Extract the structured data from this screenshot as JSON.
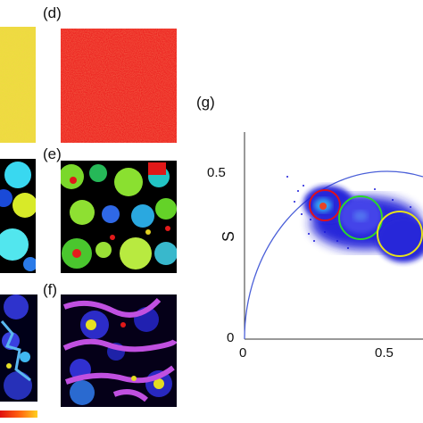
{
  "labels": {
    "d": "(d)",
    "e": "(e)",
    "f": "(f)",
    "g": "(g)"
  },
  "phasor": {
    "ylabel": "S",
    "y_ticks": [
      "0.5",
      "0"
    ],
    "x_ticks": [
      "0",
      "0.5"
    ],
    "circle_colors": {
      "red": "#e0101a",
      "green": "#2bd62b",
      "yellow": "#e7e21a"
    },
    "cloud_color": "#1a1ad8",
    "semicircle_color": "#4a5fd8"
  },
  "colorbar": {
    "colors": [
      "#e01010",
      "#ff6010",
      "#ffd020"
    ]
  }
}
